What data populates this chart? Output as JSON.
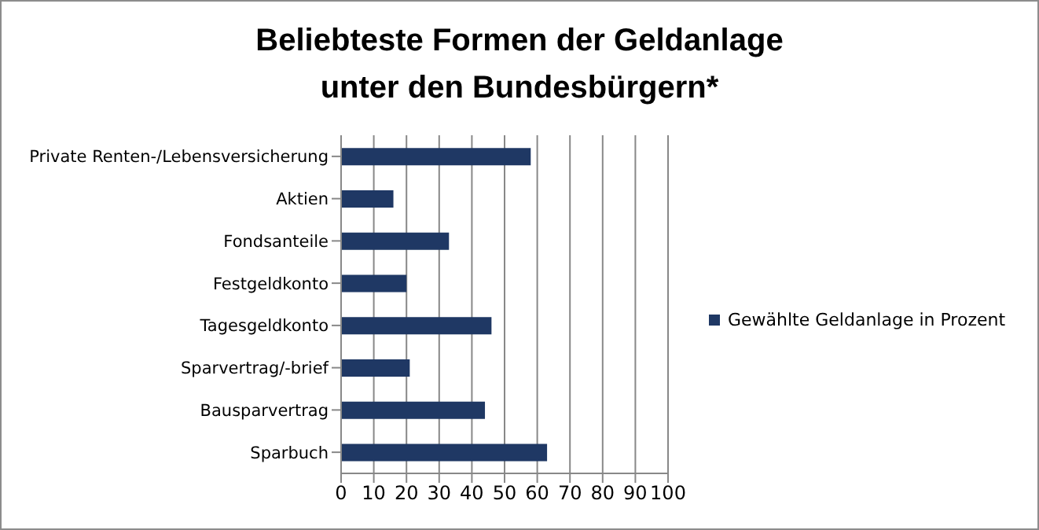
{
  "chart_data": {
    "type": "bar",
    "orientation": "horizontal",
    "title": "Beliebteste Formen der Geldanlage\nunter den Bundesbürgern*",
    "categories": [
      "Private Renten-/Lebensversicherung",
      "Aktien",
      "Fondsanteile",
      "Festgeldkonto",
      "Tagesgeldkonto",
      "Sparvertrag/-brief",
      "Bausparvertrag",
      "Sparbuch"
    ],
    "series": [
      {
        "name": "Gewählte Geldanlage in Prozent",
        "color": "#1f3864",
        "values": [
          58,
          16,
          33,
          20,
          46,
          21,
          44,
          63
        ]
      }
    ],
    "xlim": [
      0,
      100
    ],
    "xticks": [
      0,
      10,
      20,
      30,
      40,
      50,
      60,
      70,
      80,
      90,
      100
    ],
    "grid": "x",
    "legend": "right"
  }
}
